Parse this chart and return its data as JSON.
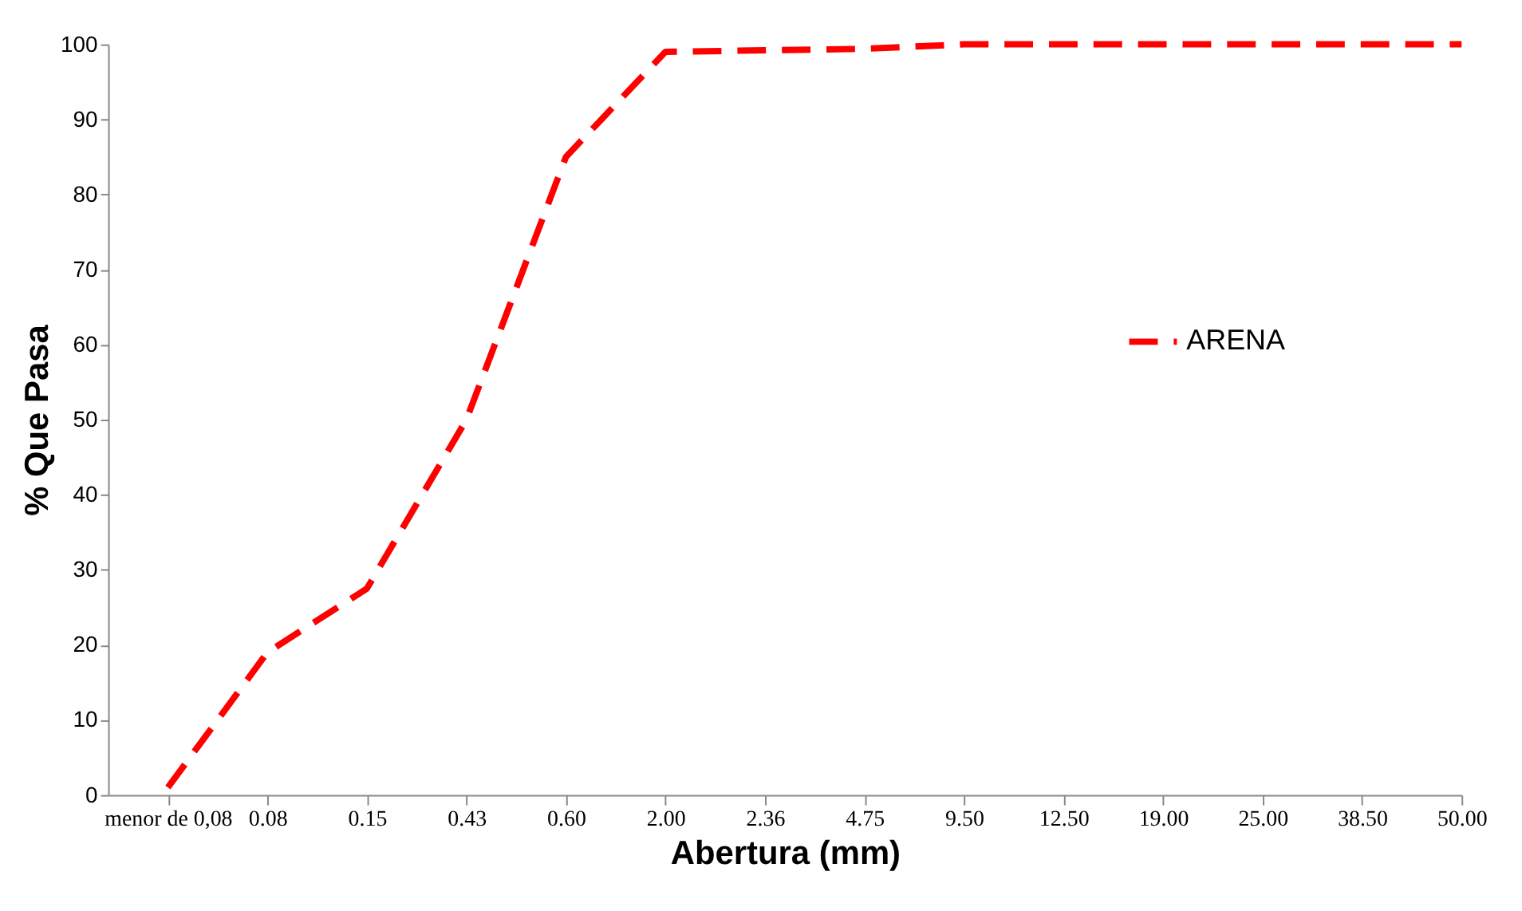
{
  "chart_data": {
    "type": "line",
    "xlabel": "Abertura (mm)",
    "ylabel": "% Que Pasa",
    "categories": [
      "menor de 0,08",
      "0.08",
      "0.15",
      "0.43",
      "0.60",
      "2.00",
      "2.36",
      "4.75",
      "9.50",
      "12.50",
      "19.00",
      "25.00",
      "38.50",
      "50.00"
    ],
    "series": [
      {
        "name": "ARENA",
        "color": "#ff0000",
        "values": [
          1,
          19,
          27.5,
          50,
          85,
          99,
          99.2,
          99.4,
          100,
          100,
          100,
          100,
          100,
          100
        ]
      }
    ],
    "ylim": [
      0,
      100
    ],
    "yticks": [
      0,
      10,
      20,
      30,
      40,
      50,
      60,
      70,
      80,
      90,
      100
    ],
    "grid": false,
    "legend": "right",
    "line_style": "dashed",
    "marker": "none"
  }
}
